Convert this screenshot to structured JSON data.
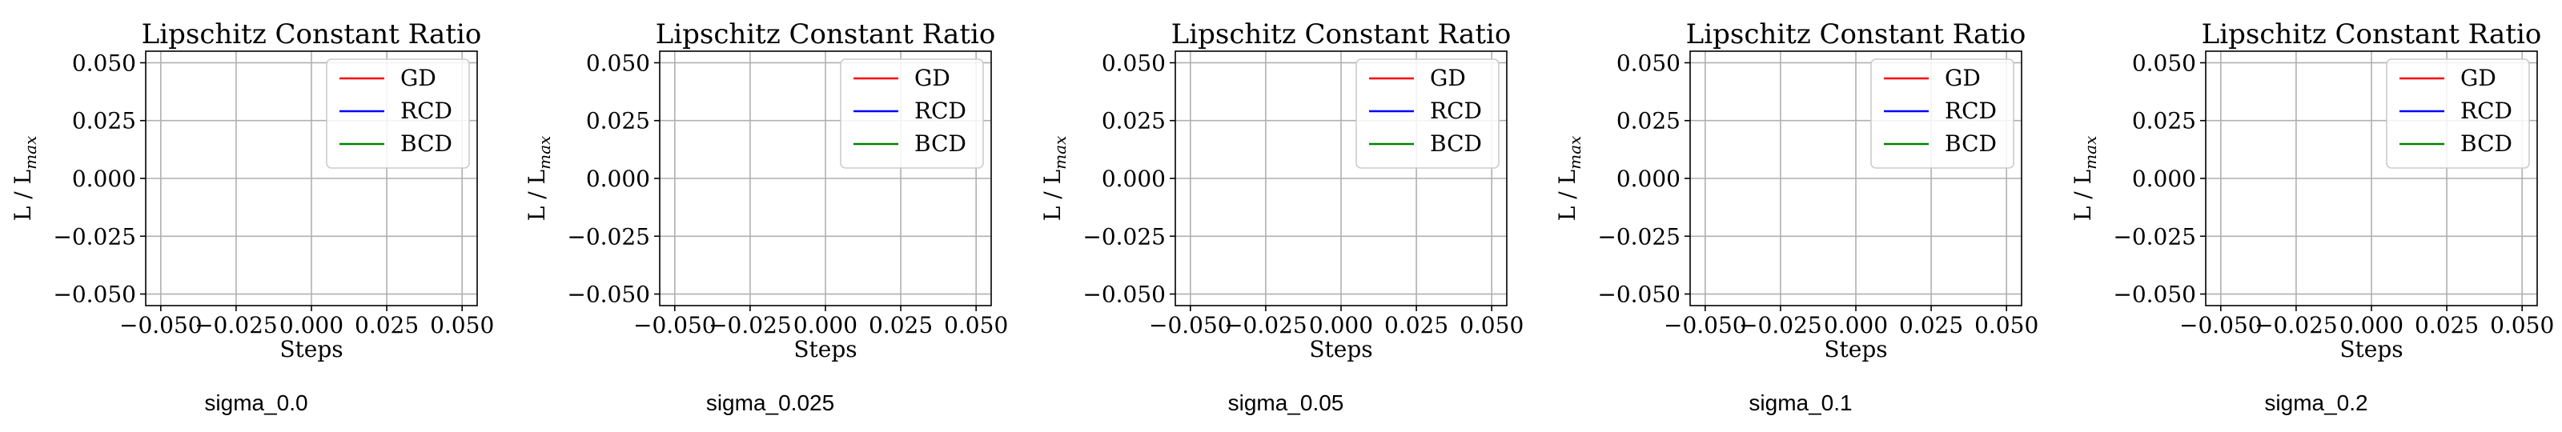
{
  "chart_data": [
    {
      "type": "line",
      "title": "Lipschitz Constant Ratio",
      "xlabel": "Steps",
      "ylabel_main": "L / L",
      "ylabel_sub": "max",
      "caption": "sigma_0.0",
      "xlim": [
        -0.055,
        0.055
      ],
      "ylim": [
        -0.055,
        0.055
      ],
      "xticks": [
        -0.05,
        -0.025,
        0.0,
        0.025,
        0.05
      ],
      "xtick_labels": [
        "−0.050",
        "−0.025",
        "0.000",
        "0.025",
        "0.050"
      ],
      "yticks": [
        0.05,
        0.025,
        0.0,
        -0.025,
        -0.05
      ],
      "ytick_labels": [
        "0.050",
        "0.025",
        "0.000",
        "−0.025",
        "−0.050"
      ],
      "grid": true,
      "legend": "top-right",
      "series": [
        {
          "name": "GD",
          "color": "#ff0000",
          "x": [],
          "y": []
        },
        {
          "name": "RCD",
          "color": "#0000ff",
          "x": [],
          "y": []
        },
        {
          "name": "BCD",
          "color": "#008000",
          "x": [],
          "y": []
        }
      ]
    },
    {
      "type": "line",
      "title": "Lipschitz Constant Ratio",
      "xlabel": "Steps",
      "ylabel_main": "L / L",
      "ylabel_sub": "max",
      "caption": "sigma_0.025",
      "xlim": [
        -0.055,
        0.055
      ],
      "ylim": [
        -0.055,
        0.055
      ],
      "xticks": [
        -0.05,
        -0.025,
        0.0,
        0.025,
        0.05
      ],
      "xtick_labels": [
        "−0.050",
        "−0.025",
        "0.000",
        "0.025",
        "0.050"
      ],
      "yticks": [
        0.05,
        0.025,
        0.0,
        -0.025,
        -0.05
      ],
      "ytick_labels": [
        "0.050",
        "0.025",
        "0.000",
        "−0.025",
        "−0.050"
      ],
      "grid": true,
      "legend": "top-right",
      "series": [
        {
          "name": "GD",
          "color": "#ff0000",
          "x": [],
          "y": []
        },
        {
          "name": "RCD",
          "color": "#0000ff",
          "x": [],
          "y": []
        },
        {
          "name": "BCD",
          "color": "#008000",
          "x": [],
          "y": []
        }
      ]
    },
    {
      "type": "line",
      "title": "Lipschitz Constant Ratio",
      "xlabel": "Steps",
      "ylabel_main": "L / L",
      "ylabel_sub": "max",
      "caption": "sigma_0.05",
      "xlim": [
        -0.055,
        0.055
      ],
      "ylim": [
        -0.055,
        0.055
      ],
      "xticks": [
        -0.05,
        -0.025,
        0.0,
        0.025,
        0.05
      ],
      "xtick_labels": [
        "−0.050",
        "−0.025",
        "0.000",
        "0.025",
        "0.050"
      ],
      "yticks": [
        0.05,
        0.025,
        0.0,
        -0.025,
        -0.05
      ],
      "ytick_labels": [
        "0.050",
        "0.025",
        "0.000",
        "−0.025",
        "−0.050"
      ],
      "grid": true,
      "legend": "top-right",
      "series": [
        {
          "name": "GD",
          "color": "#ff0000",
          "x": [],
          "y": []
        },
        {
          "name": "RCD",
          "color": "#0000ff",
          "x": [],
          "y": []
        },
        {
          "name": "BCD",
          "color": "#008000",
          "x": [],
          "y": []
        }
      ]
    },
    {
      "type": "line",
      "title": "Lipschitz Constant Ratio",
      "xlabel": "Steps",
      "ylabel_main": "L / L",
      "ylabel_sub": "max",
      "caption": "sigma_0.1",
      "xlim": [
        -0.055,
        0.055
      ],
      "ylim": [
        -0.055,
        0.055
      ],
      "xticks": [
        -0.05,
        -0.025,
        0.0,
        0.025,
        0.05
      ],
      "xtick_labels": [
        "−0.050",
        "−0.025",
        "0.000",
        "0.025",
        "0.050"
      ],
      "yticks": [
        0.05,
        0.025,
        0.0,
        -0.025,
        -0.05
      ],
      "ytick_labels": [
        "0.050",
        "0.025",
        "0.000",
        "−0.025",
        "−0.050"
      ],
      "grid": true,
      "legend": "top-right",
      "series": [
        {
          "name": "GD",
          "color": "#ff0000",
          "x": [],
          "y": []
        },
        {
          "name": "RCD",
          "color": "#0000ff",
          "x": [],
          "y": []
        },
        {
          "name": "BCD",
          "color": "#008000",
          "x": [],
          "y": []
        }
      ]
    },
    {
      "type": "line",
      "title": "Lipschitz Constant Ratio",
      "xlabel": "Steps",
      "ylabel_main": "L / L",
      "ylabel_sub": "max",
      "caption": "sigma_0.2",
      "xlim": [
        -0.055,
        0.055
      ],
      "ylim": [
        -0.055,
        0.055
      ],
      "xticks": [
        -0.05,
        -0.025,
        0.0,
        0.025,
        0.05
      ],
      "xtick_labels": [
        "−0.050",
        "−0.025",
        "0.000",
        "0.025",
        "0.050"
      ],
      "yticks": [
        0.05,
        0.025,
        0.0,
        -0.025,
        -0.05
      ],
      "ytick_labels": [
        "0.050",
        "0.025",
        "0.000",
        "−0.025",
        "−0.050"
      ],
      "grid": true,
      "legend": "top-right",
      "series": [
        {
          "name": "GD",
          "color": "#ff0000",
          "x": [],
          "y": []
        },
        {
          "name": "RCD",
          "color": "#0000ff",
          "x": [],
          "y": []
        },
        {
          "name": "BCD",
          "color": "#008000",
          "x": [],
          "y": []
        }
      ]
    }
  ]
}
